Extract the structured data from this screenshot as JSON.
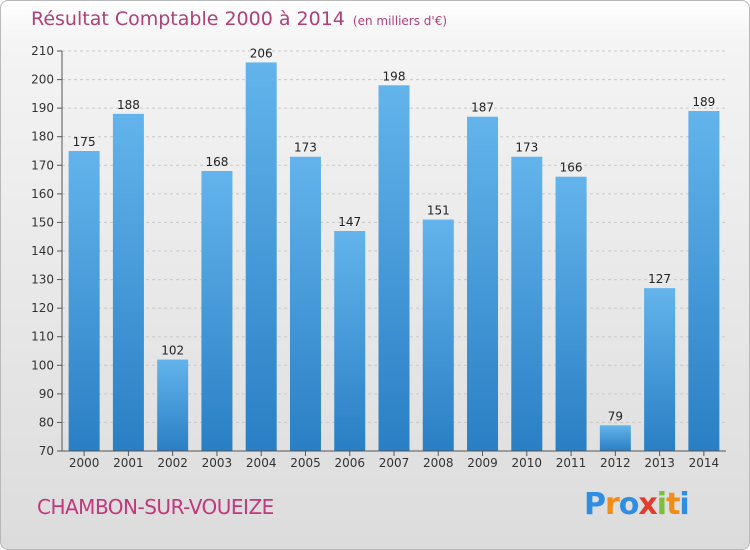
{
  "title": "Résultat Comptable 2000 à 2014",
  "unit": "(en milliers d'€)",
  "place": "CHAMBON-SUR-VOUEIZE",
  "logo": "Proxiti",
  "colors": {
    "bar_top": "#63b4ec",
    "bar_bottom": "#2a7fc4",
    "title": "#b0407a",
    "place": "#c2377d"
  },
  "chart_data": {
    "type": "bar",
    "title": "Résultat Comptable 2000 à 2014",
    "categories": [
      "2000",
      "2001",
      "2002",
      "2003",
      "2004",
      "2005",
      "2006",
      "2007",
      "2008",
      "2009",
      "2010",
      "2011",
      "2012",
      "2013",
      "2014"
    ],
    "values": [
      175,
      188,
      102,
      168,
      206,
      173,
      147,
      198,
      151,
      187,
      173,
      166,
      79,
      127,
      189
    ],
    "ylim": [
      70,
      210
    ],
    "yticks": [
      70,
      80,
      90,
      100,
      110,
      120,
      130,
      140,
      150,
      160,
      170,
      180,
      190,
      200,
      210
    ],
    "grid": true,
    "data_labels": true,
    "legend": "none"
  }
}
